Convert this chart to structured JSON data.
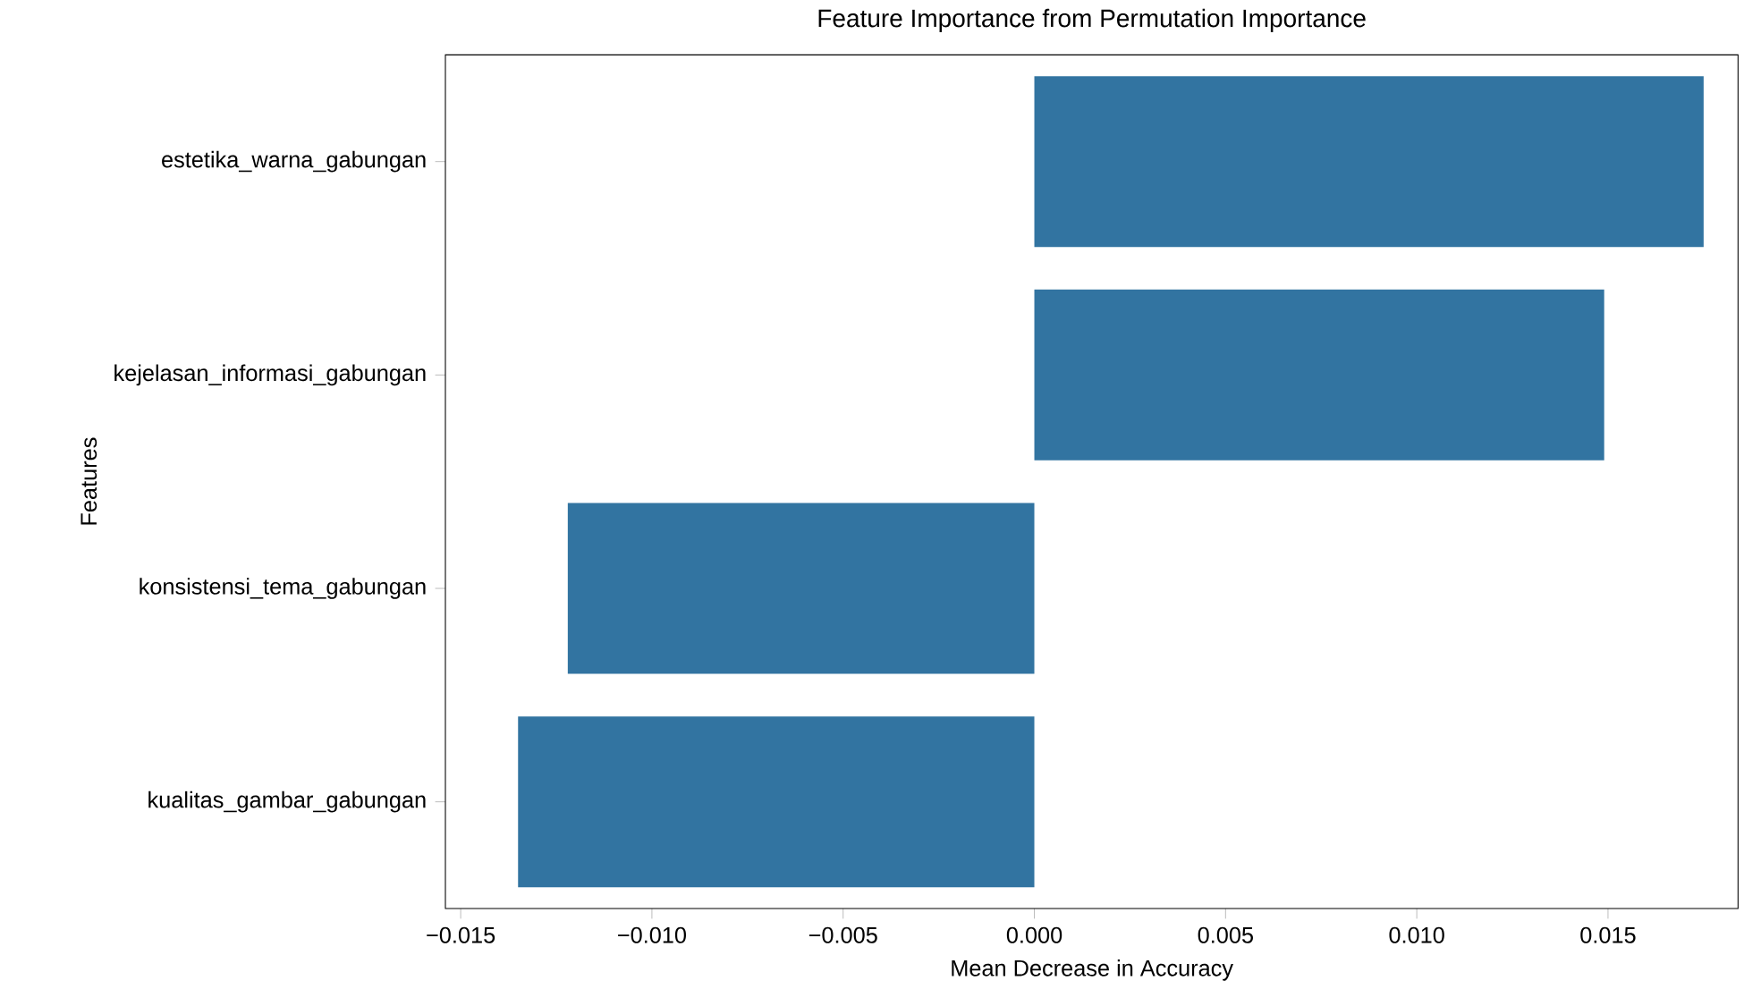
{
  "chart_data": {
    "type": "bar",
    "orientation": "horizontal",
    "title": "Feature Importance from Permutation Importance",
    "xlabel": "Mean Decrease in Accuracy",
    "ylabel": "Features",
    "categories": [
      "estetika_warna_gabungan",
      "kejelasan_informasi_gabungan",
      "konsistensi_tema_gabungan",
      "kualitas_gambar_gabungan"
    ],
    "values": [
      0.0175,
      0.0149,
      -0.0122,
      -0.0135
    ],
    "color": "#3274a1",
    "xlim": [
      -0.0154,
      0.0184
    ],
    "xticks": [
      {
        "value": -0.015,
        "label": "−0.015"
      },
      {
        "value": -0.01,
        "label": "−0.010"
      },
      {
        "value": -0.005,
        "label": "−0.005"
      },
      {
        "value": 0,
        "label": "0.000"
      },
      {
        "value": 0.005,
        "label": "0.005"
      },
      {
        "value": 0.01,
        "label": "0.010"
      },
      {
        "value": 0.015,
        "label": "0.015"
      }
    ]
  }
}
